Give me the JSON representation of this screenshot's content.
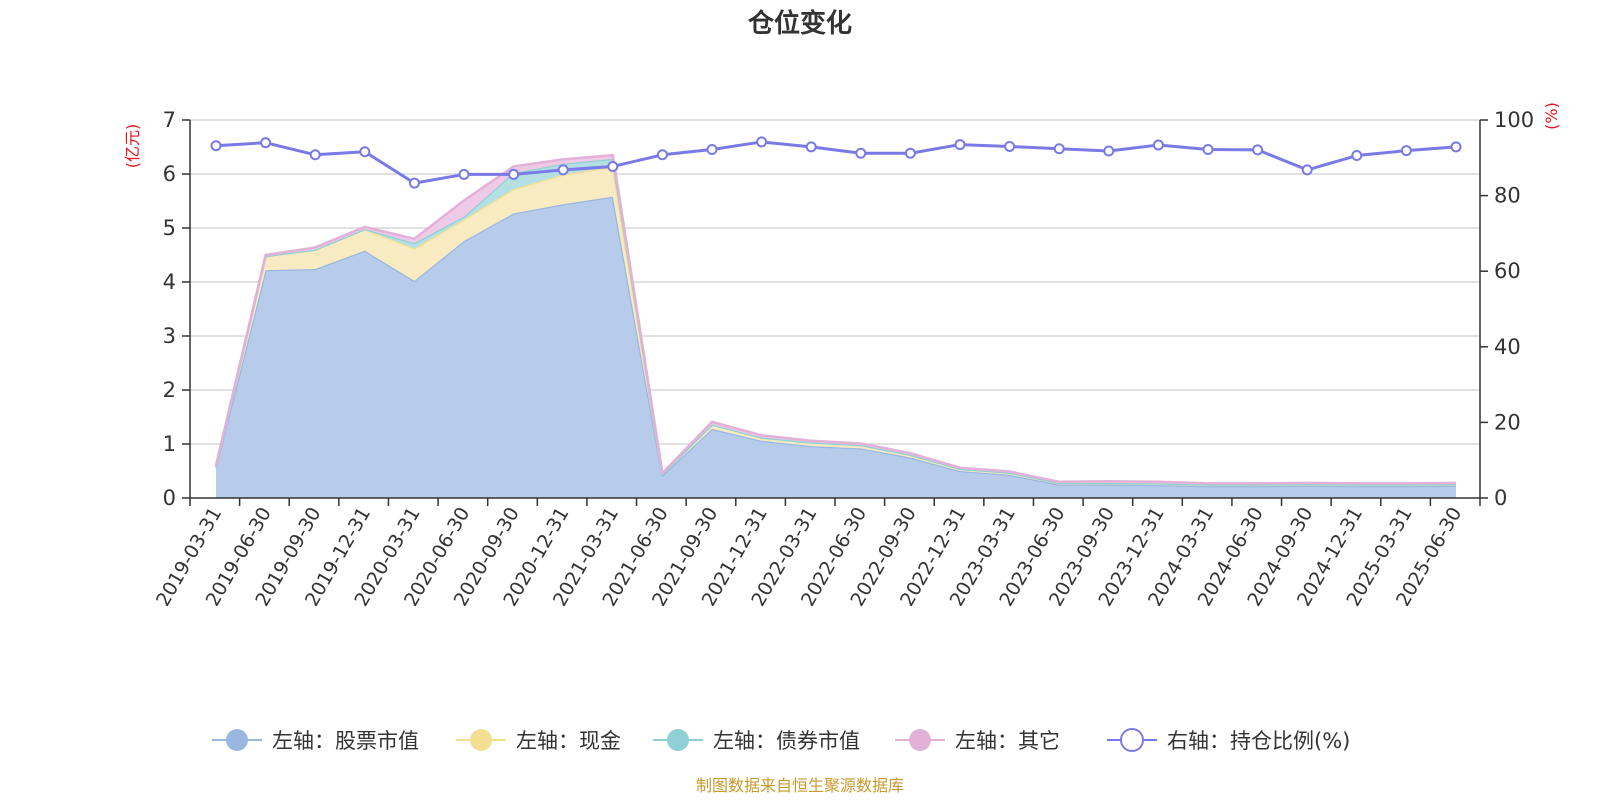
{
  "chart_data": {
    "type": "area",
    "title": "仓位变化",
    "left_axis": {
      "unit": "(亿元)",
      "range": [
        0,
        7
      ],
      "ticks": [
        "0",
        "1",
        "2",
        "3",
        "4",
        "5",
        "6",
        "7"
      ]
    },
    "right_axis": {
      "unit": "(%)",
      "range": [
        0,
        100
      ],
      "ticks": [
        "0",
        "20",
        "40",
        "60",
        "80",
        "100"
      ]
    },
    "categories": [
      "2019-03-31",
      "2019-06-30",
      "2019-09-30",
      "2019-12-31",
      "2020-03-31",
      "2020-06-30",
      "2020-09-30",
      "2020-12-31",
      "2021-03-31",
      "2021-06-30",
      "2021-09-30",
      "2021-12-31",
      "2022-03-31",
      "2022-06-30",
      "2022-09-30",
      "2022-12-31",
      "2023-03-31",
      "2023-06-30",
      "2023-09-30",
      "2023-12-31",
      "2024-03-31",
      "2024-06-30",
      "2024-09-30",
      "2024-12-31",
      "2025-03-31",
      "2025-06-30"
    ],
    "series": [
      {
        "name": "左轴：股票市值",
        "axis": "left",
        "stack": true,
        "color": "#9ab7e2",
        "fill": "#b7cceb",
        "values": [
          0.57,
          4.22,
          4.24,
          4.58,
          4.02,
          4.76,
          5.27,
          5.44,
          5.58,
          0.42,
          1.28,
          1.06,
          0.96,
          0.92,
          0.75,
          0.5,
          0.43,
          0.25,
          0.25,
          0.24,
          0.22,
          0.22,
          0.23,
          0.22,
          0.22,
          0.23
        ]
      },
      {
        "name": "左轴：现金",
        "axis": "left",
        "stack": true,
        "color": "#f2df93",
        "fill": "#f9ebc1",
        "values": [
          0.02,
          0.26,
          0.36,
          0.4,
          0.6,
          0.4,
          0.45,
          0.55,
          0.55,
          0.03,
          0.08,
          0.06,
          0.07,
          0.06,
          0.05,
          0.04,
          0.04,
          0.03,
          0.03,
          0.03,
          0.03,
          0.03,
          0.03,
          0.03,
          0.03,
          0.03
        ]
      },
      {
        "name": "左轴：债券市值",
        "axis": "left",
        "stack": true,
        "color": "#8fd0d5",
        "fill": "#b4e0e3",
        "values": [
          0.0,
          0.0,
          0.0,
          0.0,
          0.1,
          0.05,
          0.3,
          0.2,
          0.15,
          0.0,
          0.0,
          0.0,
          0.0,
          0.0,
          0.0,
          0.0,
          0.0,
          0.0,
          0.0,
          0.0,
          0.0,
          0.0,
          0.0,
          0.0,
          0.0,
          0.0
        ]
      },
      {
        "name": "左轴：其它",
        "axis": "left",
        "stack": true,
        "color": "#e3b1d8",
        "fill": "#efcae6",
        "values": [
          0.01,
          0.02,
          0.04,
          0.04,
          0.08,
          0.3,
          0.12,
          0.08,
          0.07,
          0.01,
          0.05,
          0.04,
          0.03,
          0.03,
          0.03,
          0.02,
          0.02,
          0.02,
          0.03,
          0.03,
          0.02,
          0.02,
          0.02,
          0.02,
          0.02,
          0.02
        ]
      },
      {
        "name": "右轴：持仓比例(%)",
        "axis": "right",
        "stack": false,
        "color": "#7a7ae6",
        "values": [
          93.2,
          94.0,
          90.8,
          91.6,
          83.3,
          85.6,
          85.6,
          86.8,
          87.7,
          90.8,
          92.2,
          94.2,
          92.9,
          91.2,
          91.2,
          93.5,
          93.0,
          92.4,
          91.8,
          93.4,
          92.2,
          92.1,
          86.8,
          90.6,
          91.9,
          92.9
        ]
      }
    ],
    "legend_position": "bottom",
    "grid": true,
    "source_note": "制图数据来自恒生聚源数据库"
  }
}
